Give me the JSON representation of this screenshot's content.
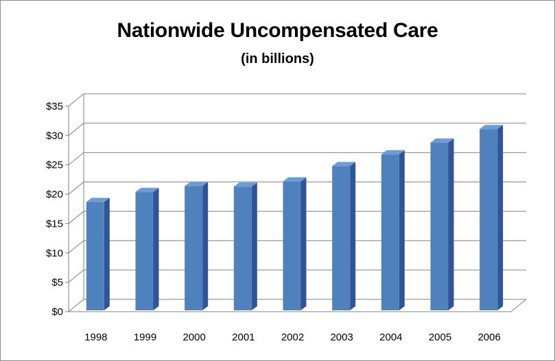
{
  "chart_data": {
    "type": "bar",
    "title": "Nationwide Uncompensated Care",
    "subtitle": "(in billions)",
    "xlabel": "",
    "ylabel": "",
    "categories": [
      "1998",
      "1999",
      "2000",
      "2001",
      "2002",
      "2003",
      "2004",
      "2005",
      "2006"
    ],
    "values": [
      18.7,
      20.4,
      21.4,
      21.3,
      22.2,
      24.8,
      26.8,
      28.8,
      31.1
    ],
    "ylim": [
      0,
      35
    ],
    "yticks": [
      "$0",
      "$5",
      "$10",
      "$15",
      "$20",
      "$25",
      "$30",
      "$35"
    ],
    "grid": true,
    "legend": "none",
    "colors": {
      "bar_front": "#4f81bd",
      "bar_side": "#2f5597",
      "bar_top": "#6f9bd1",
      "grid": "#808080"
    }
  }
}
